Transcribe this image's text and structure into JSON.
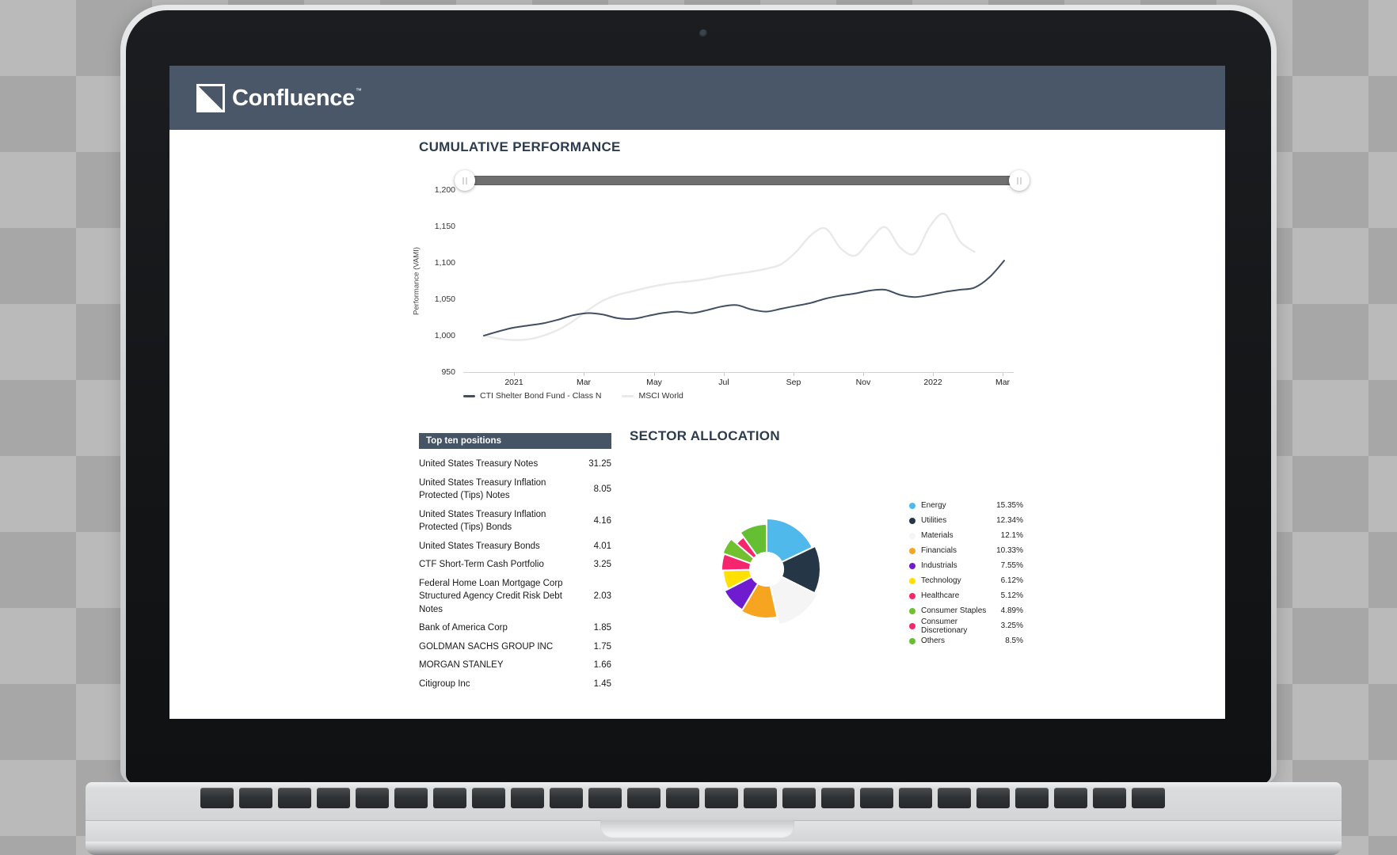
{
  "app": {
    "logo": {
      "text": "Confluence",
      "tm": "™"
    }
  },
  "performance": {
    "title": "CUMULATIVE PERFORMANCE"
  },
  "positions": {
    "header": "Top ten positions",
    "rows": [
      {
        "name": "United States Treasury Notes",
        "value": "31.25"
      },
      {
        "name": "United States Treasury Inflation Protected (Tips) Notes",
        "value": "8.05"
      },
      {
        "name": "United States Treasury Inflation Protected (Tips) Bonds",
        "value": "4.16"
      },
      {
        "name": "United States Treasury Bonds",
        "value": "4.01"
      },
      {
        "name": "CTF Short-Term Cash Portfolio",
        "value": "3.25"
      },
      {
        "name": "Federal Home Loan Mortgage Corp Structured Agency Credit Risk Debt Notes",
        "value": "2.03"
      },
      {
        "name": "Bank of America Corp",
        "value": "1.85"
      },
      {
        "name": "GOLDMAN SACHS GROUP INC",
        "value": "1.75"
      },
      {
        "name": "MORGAN STANLEY",
        "value": "1.66"
      },
      {
        "name": "Citigroup Inc",
        "value": "1.45"
      }
    ]
  },
  "sector": {
    "title": "SECTOR ALLOCATION"
  },
  "chart_data": [
    {
      "type": "line",
      "title": "CUMULATIVE PERFORMANCE",
      "xlabel": "",
      "ylabel": "Performance (VAMI)",
      "ylim": [
        950,
        1200
      ],
      "yticks": [
        "1,200",
        "1,150",
        "1,100",
        "1,050",
        "1,000",
        "950"
      ],
      "xticks": [
        "2021",
        "Mar",
        "May",
        "Jul",
        "Sep",
        "Nov",
        "2022",
        "Mar"
      ],
      "grid": false,
      "legend_position": "bottom",
      "series": [
        {
          "name": "CTI Shelter Bond Fund - Class N",
          "color": "#414f63",
          "values": [
            1000,
            1006,
            1011,
            1014,
            1017,
            1022,
            1028,
            1031,
            1029,
            1024,
            1023,
            1027,
            1031,
            1033,
            1031,
            1035,
            1040,
            1042,
            1036,
            1033,
            1037,
            1041,
            1045,
            1051,
            1055,
            1058,
            1062,
            1063,
            1056,
            1053,
            1056,
            1060,
            1063,
            1066,
            1080,
            1103
          ]
        },
        {
          "name": "MSCI World",
          "color": "#e9e9e9",
          "values": [
            1000,
            996,
            994,
            995,
            1000,
            1008,
            1020,
            1035,
            1048,
            1056,
            1061,
            1066,
            1070,
            1073,
            1075,
            1078,
            1082,
            1085,
            1088,
            1092,
            1098,
            1115,
            1138,
            1147,
            1120,
            1110,
            1132,
            1149,
            1121,
            1113,
            1150,
            1167,
            1130,
            1115,
            null,
            null
          ]
        }
      ]
    },
    {
      "type": "pie",
      "donut": true,
      "title": "SECTOR ALLOCATION",
      "labels": [
        "Energy",
        "Utilities",
        "Materials",
        "Financials",
        "Industrials",
        "Technology",
        "Healthcare",
        "Consumer Staples",
        "Consumer Discretionary",
        "Others"
      ],
      "values": [
        15.35,
        12.34,
        12.1,
        10.33,
        7.55,
        6.12,
        5.12,
        4.89,
        3.25,
        8.5
      ],
      "display_values": [
        "15.35%",
        "12.34%",
        "12.1%",
        "10.33%",
        "7.55%",
        "6.12%",
        "5.12%",
        "4.89%",
        "3.25%",
        "8.5%"
      ],
      "colors": [
        "#4fb9ec",
        "#253646",
        "#f5f5f5",
        "#f7a421",
        "#6f1cd1",
        "#ffe000",
        "#f5266d",
        "#71c02f",
        "#f5266d",
        "#64bf33"
      ],
      "legend_position": "right"
    }
  ]
}
